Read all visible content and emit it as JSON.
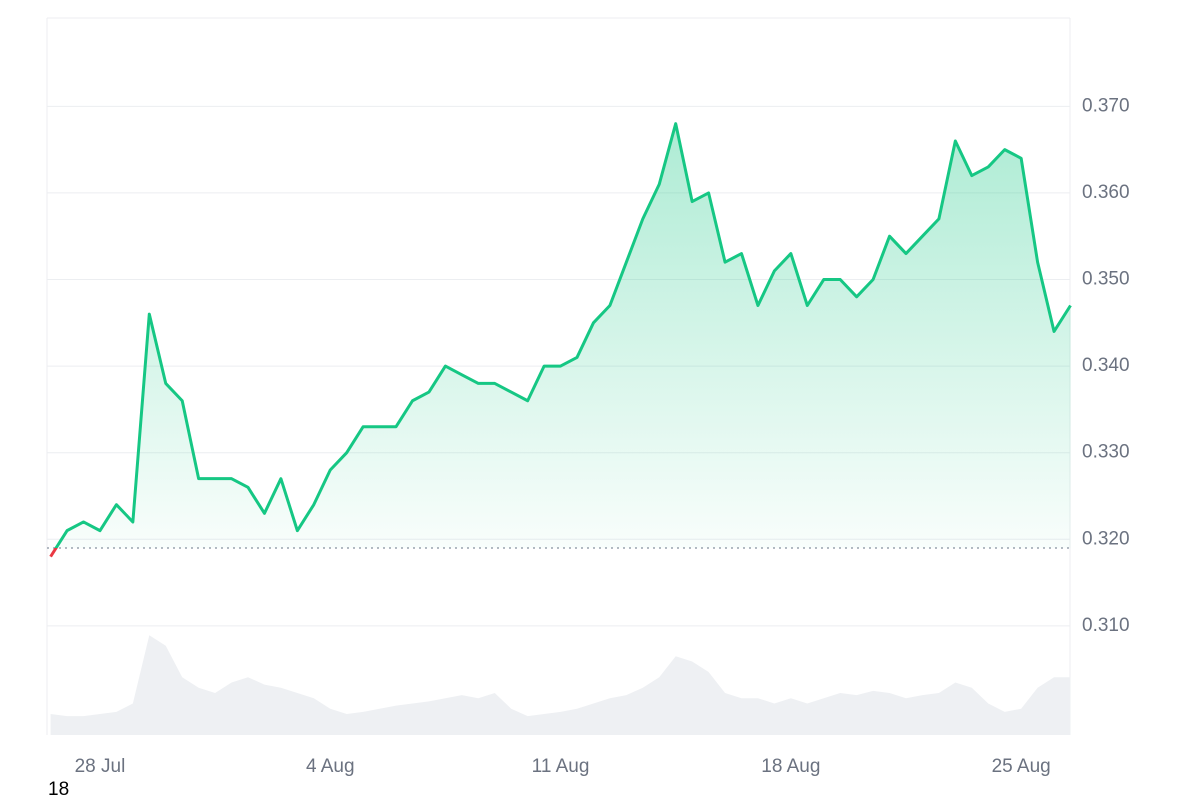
{
  "chart_data": {
    "type": "line",
    "categories": [
      null,
      null,
      null,
      "28 Jul",
      null,
      null,
      null,
      null,
      null,
      null,
      null,
      null,
      null,
      null,
      null,
      null,
      null,
      "4 Aug",
      null,
      null,
      null,
      null,
      null,
      null,
      null,
      null,
      null,
      null,
      null,
      null,
      null,
      "11 Aug",
      null,
      null,
      null,
      null,
      null,
      null,
      null,
      null,
      null,
      null,
      null,
      null,
      null,
      "18 Aug",
      null,
      null,
      null,
      null,
      null,
      null,
      null,
      null,
      null,
      null,
      null,
      null,
      null,
      "25 Aug",
      null,
      null,
      null
    ],
    "values": [
      0.318,
      0.321,
      0.322,
      0.321,
      0.324,
      0.322,
      0.346,
      0.338,
      0.336,
      0.327,
      0.327,
      0.327,
      0.326,
      0.323,
      0.327,
      0.321,
      0.324,
      0.328,
      0.33,
      0.333,
      0.333,
      0.333,
      0.336,
      0.337,
      0.34,
      0.339,
      0.338,
      0.338,
      0.337,
      0.336,
      0.34,
      0.34,
      0.341,
      0.345,
      0.347,
      0.352,
      0.357,
      0.361,
      0.368,
      0.359,
      0.36,
      0.352,
      0.353,
      0.347,
      0.351,
      0.353,
      0.347,
      0.35,
      0.35,
      0.348,
      0.35,
      0.355,
      0.353,
      0.355,
      0.357,
      0.366,
      0.362,
      0.363,
      0.365,
      0.364,
      0.352,
      0.344,
      0.347
    ],
    "volume": [
      20,
      18,
      18,
      20,
      22,
      30,
      95,
      85,
      55,
      45,
      40,
      50,
      55,
      48,
      45,
      40,
      35,
      25,
      20,
      22,
      25,
      28,
      30,
      32,
      35,
      38,
      35,
      40,
      25,
      18,
      20,
      22,
      25,
      30,
      35,
      38,
      45,
      55,
      75,
      70,
      60,
      40,
      35,
      35,
      30,
      35,
      30,
      35,
      40,
      38,
      42,
      40,
      35,
      38,
      40,
      50,
      45,
      30,
      22,
      25,
      45,
      55,
      55
    ],
    "volume_lim": [
      0,
      100
    ],
    "reference_line": 0.319,
    "color": "#16c784",
    "down_color": "#ea3943",
    "volume_color": "#eef0f3",
    "ylim": [
      0.2974,
      0.3802
    ],
    "yticks": [
      {
        "value": 0.31,
        "label": "0.310"
      },
      {
        "value": 0.32,
        "label": "0.320"
      },
      {
        "value": 0.33,
        "label": "0.330"
      },
      {
        "value": 0.34,
        "label": "0.340"
      },
      {
        "value": 0.35,
        "label": "0.350"
      },
      {
        "value": 0.36,
        "label": "0.360"
      },
      {
        "value": 0.37,
        "label": "0.370"
      }
    ],
    "grid": true,
    "annotation": "18"
  }
}
